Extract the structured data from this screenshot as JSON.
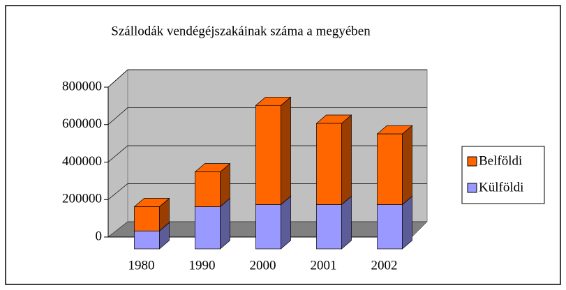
{
  "chart_data": {
    "type": "bar3d_stacked",
    "title": "Szállodák vendégéjszakáinak száma a megyében",
    "categories": [
      "1980",
      "1990",
      "2000",
      "2001",
      "2002"
    ],
    "series": [
      {
        "name": "Külföldi",
        "color": "#9999ff",
        "values": [
          85000,
          200000,
          210000,
          210000,
          210000
        ]
      },
      {
        "name": "Belföldi",
        "color": "#ff6600",
        "values": [
          115000,
          165000,
          470000,
          385000,
          335000
        ]
      }
    ],
    "ylim": [
      0,
      800000
    ],
    "yticks": [
      0,
      200000,
      400000,
      600000,
      800000
    ],
    "grid": true,
    "legend": "right"
  }
}
